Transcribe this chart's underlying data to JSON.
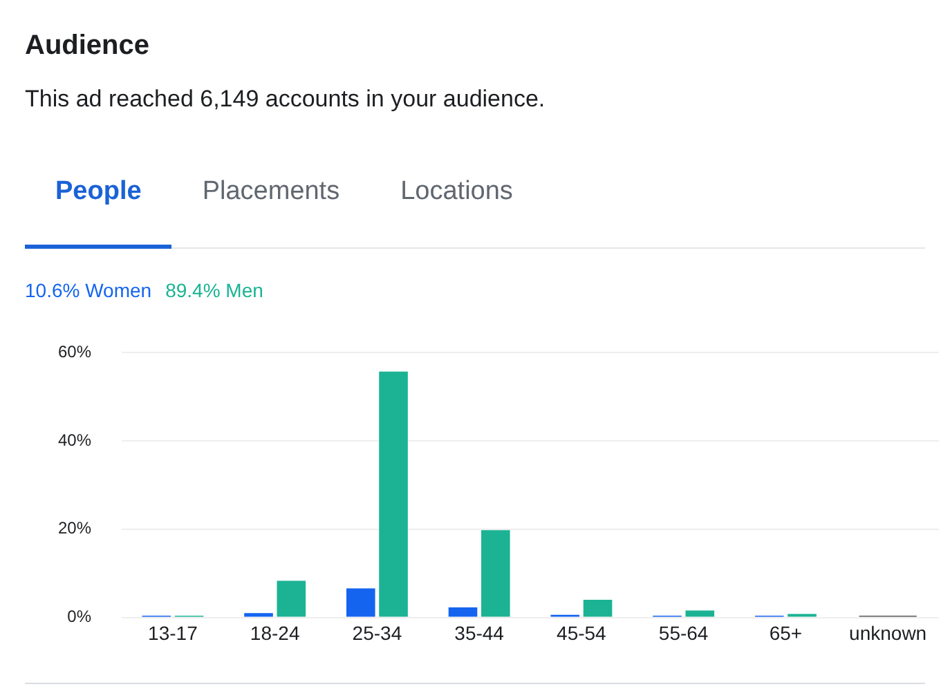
{
  "chart_data": {
    "type": "bar",
    "title": "Audience",
    "subtitle": "This ad reached 6,149 accounts in your audience.",
    "annotations": [
      "People",
      "Placements",
      "Locations"
    ],
    "categories": [
      "13-17",
      "18-24",
      "25-34",
      "35-44",
      "45-54",
      "55-64",
      "65+",
      "unknown"
    ],
    "series": [
      {
        "name": "10.6% Women",
        "color": "#1464f0",
        "values": [
          0.4,
          1.0,
          6.6,
          2.3,
          0.6,
          0.4,
          0.4,
          null
        ]
      },
      {
        "name": "89.4% Men",
        "color": "#1bb394",
        "values": [
          0.4,
          8.3,
          55.7,
          19.8,
          4.0,
          1.6,
          0.8,
          null
        ]
      },
      {
        "color": "#555555",
        "values": [
          null,
          null,
          null,
          null,
          null,
          null,
          null,
          0.4
        ]
      }
    ],
    "ylim": [
      0,
      60
    ],
    "yticks": [
      {
        "value": 0,
        "label": "0%"
      },
      {
        "value": 20,
        "label": "20%"
      },
      {
        "value": 40,
        "label": "40%"
      },
      {
        "value": 60,
        "label": "60%"
      }
    ],
    "grid": "y",
    "legend": "top left"
  }
}
